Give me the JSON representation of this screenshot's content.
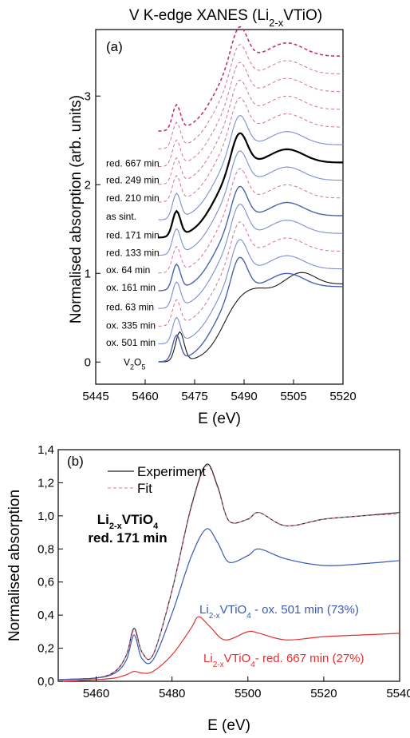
{
  "chart_data": [
    {
      "type": "line",
      "panel": "(a)",
      "title": "V K-edge XANES (Li2-xVTiO)",
      "title_parts": {
        "main": "V K-edge XANES (Li",
        "sub": "2-x",
        "tail": "VTiO)"
      },
      "xlabel": "E (eV)",
      "ylabel": "Normalised absorption (arb. units)",
      "xlim": [
        5445,
        5520
      ],
      "ylim": [
        -0.25,
        3.75
      ],
      "xticks": [
        5445,
        5460,
        5475,
        5490,
        5505,
        5520
      ],
      "yticks": [
        0,
        1,
        2,
        3
      ],
      "grid": false,
      "legend": "none",
      "series": [
        {
          "name": "V2O5",
          "label_main": "V",
          "label_sub": "2",
          "label_mid": "O",
          "label_sub2": "5",
          "style": "solid",
          "color": "#1a1a1a",
          "width": 1.1,
          "offset": 0.0,
          "kind": "v2o5",
          "label_y": 0.0
        },
        {
          "name": "ox. 501 min",
          "style": "solid",
          "color": "#4a62b0",
          "width": 1.4,
          "offset": 0.0,
          "kind": "sample",
          "label_y": 0.22
        },
        {
          "name": "ox. 335 min",
          "style": "solid",
          "color": "#7b8fd0",
          "width": 1.1,
          "offset": 0.2,
          "kind": "sample",
          "label_y": 0.41
        },
        {
          "name": "red. 63 min",
          "style": "dashed",
          "color": "#d070a0",
          "width": 1.0,
          "offset": 0.4,
          "kind": "sample",
          "label_y": 0.62
        },
        {
          "name": "ox. 161 min",
          "style": "solid",
          "color": "#7b8fd0",
          "width": 1.1,
          "offset": 0.6,
          "kind": "sample",
          "label_y": 0.84
        },
        {
          "name": "ox. 64 min",
          "style": "solid",
          "color": "#4a62b0",
          "width": 1.4,
          "offset": 0.8,
          "kind": "sample",
          "label_y": 1.04
        },
        {
          "name": "red. 133 min",
          "style": "dashed",
          "color": "#d070a0",
          "width": 1.0,
          "offset": 1.0,
          "kind": "sample",
          "label_y": 1.23
        },
        {
          "name": "red. 171 min",
          "style": "solid",
          "color": "#7b8fd0",
          "width": 1.1,
          "offset": 1.2,
          "kind": "sample",
          "label_y": 1.43
        },
        {
          "name": "as sint.",
          "style": "solid",
          "color": "#000000",
          "width": 2.2,
          "offset": 1.4,
          "kind": "sample",
          "label_y": 1.64
        },
        {
          "name": "red. 210 min",
          "style": "solid",
          "color": "#7b8fd0",
          "width": 1.1,
          "offset": 1.6,
          "kind": "sample",
          "label_y": 1.85
        },
        {
          "name": "red. 249 min",
          "style": "dashed",
          "color": "#d070a0",
          "width": 1.0,
          "offset": 1.8,
          "kind": "sample",
          "label_y": 2.05
        },
        {
          "name": "red. 667 min",
          "style": "dashed",
          "color": "#d070a0",
          "width": 1.0,
          "offset": 2.0,
          "kind": "sample",
          "label_y": 2.24
        },
        {
          "name": "",
          "style": "dashed",
          "color": "#d070a0",
          "width": 1.0,
          "offset": 2.2,
          "kind": "sample",
          "label_y": null
        },
        {
          "name": "",
          "style": "dashed",
          "color": "#d070a0",
          "width": 1.0,
          "offset": 2.4,
          "kind": "sample",
          "label_y": null
        },
        {
          "name": "",
          "style": "dashed",
          "color": "#c0307a",
          "width": 1.6,
          "offset": 2.6,
          "kind": "sample",
          "label_y": null
        }
      ]
    },
    {
      "type": "line",
      "panel": "(b)",
      "title": "",
      "xlabel": "E (eV)",
      "ylabel": "Normalised absorption",
      "xlim": [
        5450,
        5540
      ],
      "ylim": [
        0,
        1.4
      ],
      "xticks": [
        5460,
        5480,
        5500,
        5520,
        5540
      ],
      "yticks": [
        0.0,
        0.2,
        0.4,
        0.6,
        0.8,
        1.0,
        1.2,
        1.4
      ],
      "ytick_labels": [
        "0,0",
        "0,2",
        "0,4",
        "0,6",
        "0,8",
        "1,0",
        "1,2",
        "1,4"
      ],
      "grid": false,
      "legend": "top-left",
      "legend_entries": [
        "Experiment",
        "Fit"
      ],
      "sample_label": {
        "line1_main": "Li",
        "line1_sub": "2-x",
        "line1_mid": "VTiO",
        "line1_sub2": "4",
        "line2": "red. 171 min"
      },
      "series": [
        {
          "name": "Experiment",
          "style": "solid",
          "color": "#222222",
          "width": 1.2,
          "scale": 1.0,
          "x": [
            5450,
            5460,
            5465,
            5468,
            5470,
            5472,
            5475,
            5480,
            5485,
            5489,
            5492,
            5495,
            5500,
            5503,
            5510,
            5520,
            5530,
            5540
          ],
          "y": [
            0.01,
            0.02,
            0.06,
            0.16,
            0.32,
            0.18,
            0.16,
            0.55,
            1.05,
            1.31,
            1.18,
            0.97,
            0.98,
            1.02,
            0.94,
            0.98,
            1.0,
            1.02
          ]
        },
        {
          "name": "Fit",
          "style": "dashed",
          "color": "#e07090",
          "width": 1.0,
          "scale": 1.0,
          "x": [
            5450,
            5460,
            5465,
            5468,
            5470,
            5472,
            5475,
            5480,
            5485,
            5489,
            5492,
            5495,
            5500,
            5503,
            5510,
            5520,
            5530,
            5540
          ],
          "y": [
            0.01,
            0.02,
            0.06,
            0.16,
            0.31,
            0.18,
            0.16,
            0.55,
            1.04,
            1.3,
            1.17,
            0.97,
            0.98,
            1.02,
            0.94,
            0.98,
            1.0,
            1.01
          ]
        },
        {
          "name": "Li2-xVTiO4 - ox. 501 min (73%)",
          "label_main": "Li",
          "label_sub": "2-x",
          "label_mid": "VTiO",
          "label_sub2": "4",
          "label_tail": " - ox. 501 min (73%)",
          "style": "solid",
          "color": "#3c58b8",
          "width": 1.2,
          "x": [
            5450,
            5460,
            5465,
            5468,
            5470,
            5472,
            5475,
            5480,
            5485,
            5489,
            5492,
            5495,
            5500,
            5503,
            5510,
            5520,
            5530,
            5540
          ],
          "y": [
            0.01,
            0.02,
            0.05,
            0.13,
            0.28,
            0.14,
            0.13,
            0.41,
            0.75,
            0.92,
            0.84,
            0.72,
            0.76,
            0.8,
            0.74,
            0.7,
            0.71,
            0.73
          ]
        },
        {
          "name": "Li2-xVTiO4 - red. 667 min (27%)",
          "label_main": "Li",
          "label_sub": "2-x",
          "label_mid": "VTiO",
          "label_sub2": "4",
          "label_tail": "- red. 667 min (27%)",
          "style": "solid",
          "color": "#e03030",
          "width": 1.2,
          "x": [
            5450,
            5460,
            5465,
            5468,
            5470,
            5472,
            5475,
            5480,
            5485,
            5487,
            5490,
            5494,
            5500,
            5503,
            5510,
            5520,
            5530,
            5540
          ],
          "y": [
            0.0,
            0.01,
            0.02,
            0.04,
            0.06,
            0.05,
            0.06,
            0.16,
            0.32,
            0.39,
            0.33,
            0.25,
            0.3,
            0.29,
            0.25,
            0.27,
            0.28,
            0.29
          ]
        }
      ]
    }
  ]
}
